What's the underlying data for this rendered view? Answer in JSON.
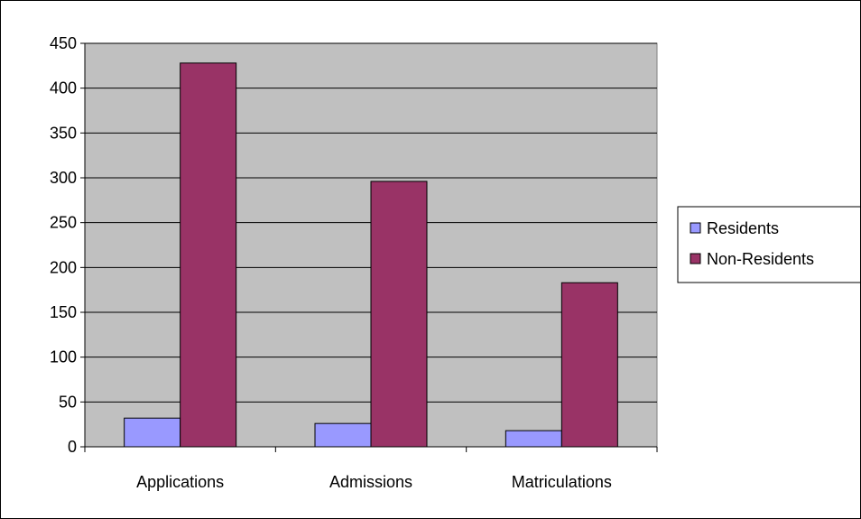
{
  "chart_data": {
    "type": "bar",
    "title": "",
    "xlabel": "",
    "ylabel": "",
    "categories": [
      "Applications",
      "Admissions",
      "Matriculations"
    ],
    "series": [
      {
        "name": "Residents",
        "values": [
          32,
          26,
          18
        ],
        "color": "#9999ff"
      },
      {
        "name": "Non-Residents",
        "values": [
          428,
          296,
          183
        ],
        "color": "#993366"
      }
    ],
    "ylim": [
      0,
      450
    ],
    "yticks": [
      0,
      50,
      100,
      150,
      200,
      250,
      300,
      350,
      400,
      450
    ],
    "grid": true,
    "legend_position": "right",
    "plot_background": "#c0c0c0"
  }
}
